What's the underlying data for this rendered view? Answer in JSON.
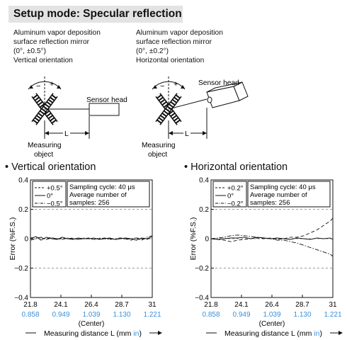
{
  "title": "Setup mode: Specular reflection",
  "setups": [
    {
      "caption": [
        "Aluminum vapor deposition",
        "surface reflection mirror",
        "(0°, ±0.5°)",
        "Vertical orientation"
      ],
      "minus": "−",
      "plus": "+",
      "sensor_label": "Sensor head",
      "distance_label": "L",
      "object_label": [
        "Measuring",
        "object"
      ]
    },
    {
      "caption": [
        "Aluminum vapor deposition",
        "surface reflection mirror",
        "(0°, ±0.2°)",
        "Horizontal orientation"
      ],
      "minus": "−",
      "plus": "+",
      "sensor_label": "Sensor head",
      "distance_label": "L",
      "object_label": [
        "Measuring",
        "object"
      ]
    }
  ],
  "chart_data": [
    {
      "type": "line",
      "section_title": "• Vertical orientation",
      "ylabel": "Error (%F.S.)",
      "xlabel": "Measuring distance L (mm in)",
      "xlabel_parts": [
        "Measuring distance L (mm ",
        "in",
        ")"
      ],
      "x_ticks_mm": [
        "21.8",
        "24.1",
        "26.4",
        "28.7",
        "31"
      ],
      "x_ticks_in": [
        "0.858",
        "0.949",
        "1.039",
        "1.130",
        "1.221"
      ],
      "center_label": "(Center)",
      "y_ticks": [
        "0.4",
        "0.2",
        "0",
        "−0.2",
        "−0.4"
      ],
      "ylim": [
        -0.4,
        0.4
      ],
      "xlim": [
        21.8,
        31
      ],
      "legend": [
        {
          "style": "dash",
          "label": "+0.5°"
        },
        {
          "style": "solid",
          "label": "0°"
        },
        {
          "style": "dashdot",
          "label": "−0.5°"
        }
      ],
      "info": [
        "Sampling cycle: 40 μs",
        "Average number of",
        "samples: 256"
      ],
      "series": [
        {
          "name": "+0.5°",
          "x": [
            21.8,
            22.2,
            22.6,
            23.0,
            23.4,
            23.8,
            24.2,
            24.6,
            25.0,
            25.4,
            25.8,
            26.2,
            26.6,
            27.0,
            27.4,
            27.8,
            28.2,
            28.6,
            29.0,
            29.4,
            29.8,
            30.2,
            30.6,
            31.0
          ],
          "y": [
            0.005,
            0.01,
            0.005,
            0.0,
            0.01,
            -0.005,
            0.005,
            0.0,
            0.005,
            -0.005,
            0.0,
            0.005,
            -0.005,
            0.0,
            0.005,
            0.0,
            -0.005,
            0.005,
            0.0,
            -0.01,
            0.005,
            0.0,
            -0.005,
            0.01
          ]
        },
        {
          "name": "0°",
          "x": [
            21.8,
            22.2,
            22.6,
            23.0,
            23.4,
            23.8,
            24.2,
            24.6,
            25.0,
            25.4,
            25.8,
            26.2,
            26.6,
            27.0,
            27.4,
            27.8,
            28.2,
            28.6,
            29.0,
            29.4,
            29.8,
            30.2,
            30.6,
            31.0
          ],
          "y": [
            0.0,
            0.015,
            -0.01,
            0.01,
            0.0,
            -0.005,
            0.01,
            0.0,
            -0.005,
            0.005,
            0.0,
            0.0,
            0.005,
            -0.005,
            0.0,
            0.005,
            -0.005,
            0.0,
            0.005,
            0.0,
            -0.01,
            0.005,
            0.0,
            0.015
          ]
        },
        {
          "name": "−0.5°",
          "x": [
            21.8,
            22.2,
            22.6,
            23.0,
            23.4,
            23.8,
            24.2,
            24.6,
            25.0,
            25.4,
            25.8,
            26.2,
            26.6,
            27.0,
            27.4,
            27.8,
            28.2,
            28.6,
            29.0,
            29.4,
            29.8,
            30.2,
            30.6,
            31.0
          ],
          "y": [
            -0.01,
            0.0,
            0.01,
            -0.005,
            0.005,
            0.0,
            -0.005,
            0.005,
            0.0,
            -0.005,
            0.005,
            0.0,
            -0.005,
            0.005,
            0.0,
            -0.005,
            0.0,
            0.005,
            -0.005,
            0.0,
            0.005,
            -0.01,
            0.01,
            0.02
          ]
        }
      ]
    },
    {
      "type": "line",
      "section_title": "• Horizontal orientation",
      "ylabel": "Error (%F.S.)",
      "xlabel": "Measuring distance L (mm in)",
      "xlabel_parts": [
        "Measuring distance L (mm ",
        "in",
        ")"
      ],
      "x_ticks_mm": [
        "21.8",
        "24.1",
        "26.4",
        "28.7",
        "31"
      ],
      "x_ticks_in": [
        "0.858",
        "0.949",
        "1.039",
        "1.130",
        "1.221"
      ],
      "center_label": "(Center)",
      "y_ticks": [
        "0.4",
        "0.2",
        "0",
        "−0.2",
        "−0.4"
      ],
      "ylim": [
        -0.4,
        0.4
      ],
      "xlim": [
        21.8,
        31
      ],
      "legend": [
        {
          "style": "dash",
          "label": "+0.2°"
        },
        {
          "style": "solid",
          "label": "0°"
        },
        {
          "style": "dashdot",
          "label": "−0.2°"
        }
      ],
      "info": [
        "Sampling cycle: 40 μs",
        "Average number of",
        "samples: 256"
      ],
      "series": [
        {
          "name": "+0.2°",
          "x": [
            21.8,
            22.3,
            22.8,
            23.3,
            23.8,
            24.3,
            24.8,
            25.3,
            25.8,
            26.3,
            26.8,
            27.3,
            27.8,
            28.3,
            28.8,
            29.3,
            29.8,
            30.3,
            30.8,
            31.0
          ],
          "y": [
            0.0,
            -0.005,
            -0.01,
            -0.02,
            -0.01,
            -0.005,
            0.0,
            0.005,
            0.0,
            0.005,
            -0.005,
            0.0,
            0.01,
            0.01,
            0.02,
            0.04,
            0.06,
            0.09,
            0.12,
            0.14
          ]
        },
        {
          "name": "0°",
          "x": [
            21.8,
            22.3,
            22.8,
            23.3,
            23.8,
            24.3,
            24.8,
            25.3,
            25.8,
            26.3,
            26.8,
            27.3,
            27.8,
            28.3,
            28.8,
            29.3,
            29.8,
            30.3,
            30.8,
            31.0
          ],
          "y": [
            0.0,
            -0.005,
            0.0,
            0.005,
            0.005,
            0.01,
            0.0,
            0.01,
            0.005,
            0.0,
            0.005,
            0.0,
            -0.005,
            0.005,
            0.0,
            -0.005,
            0.005,
            0.0,
            0.005,
            -0.005
          ]
        },
        {
          "name": "−0.2°",
          "x": [
            21.8,
            22.3,
            22.8,
            23.3,
            23.8,
            24.3,
            24.8,
            25.3,
            25.8,
            26.3,
            26.8,
            27.3,
            27.8,
            28.3,
            28.8,
            29.3,
            29.8,
            30.3,
            30.8,
            31.0
          ],
          "y": [
            0.0,
            0.005,
            0.01,
            0.02,
            0.025,
            0.02,
            0.015,
            0.01,
            0.005,
            0.0,
            -0.01,
            -0.01,
            -0.02,
            -0.03,
            -0.045,
            -0.06,
            -0.075,
            -0.09,
            -0.105,
            -0.12
          ]
        }
      ]
    }
  ],
  "colors": {
    "accent_blue": "#3a8fd8",
    "title_bg": "#e3e3e3"
  }
}
